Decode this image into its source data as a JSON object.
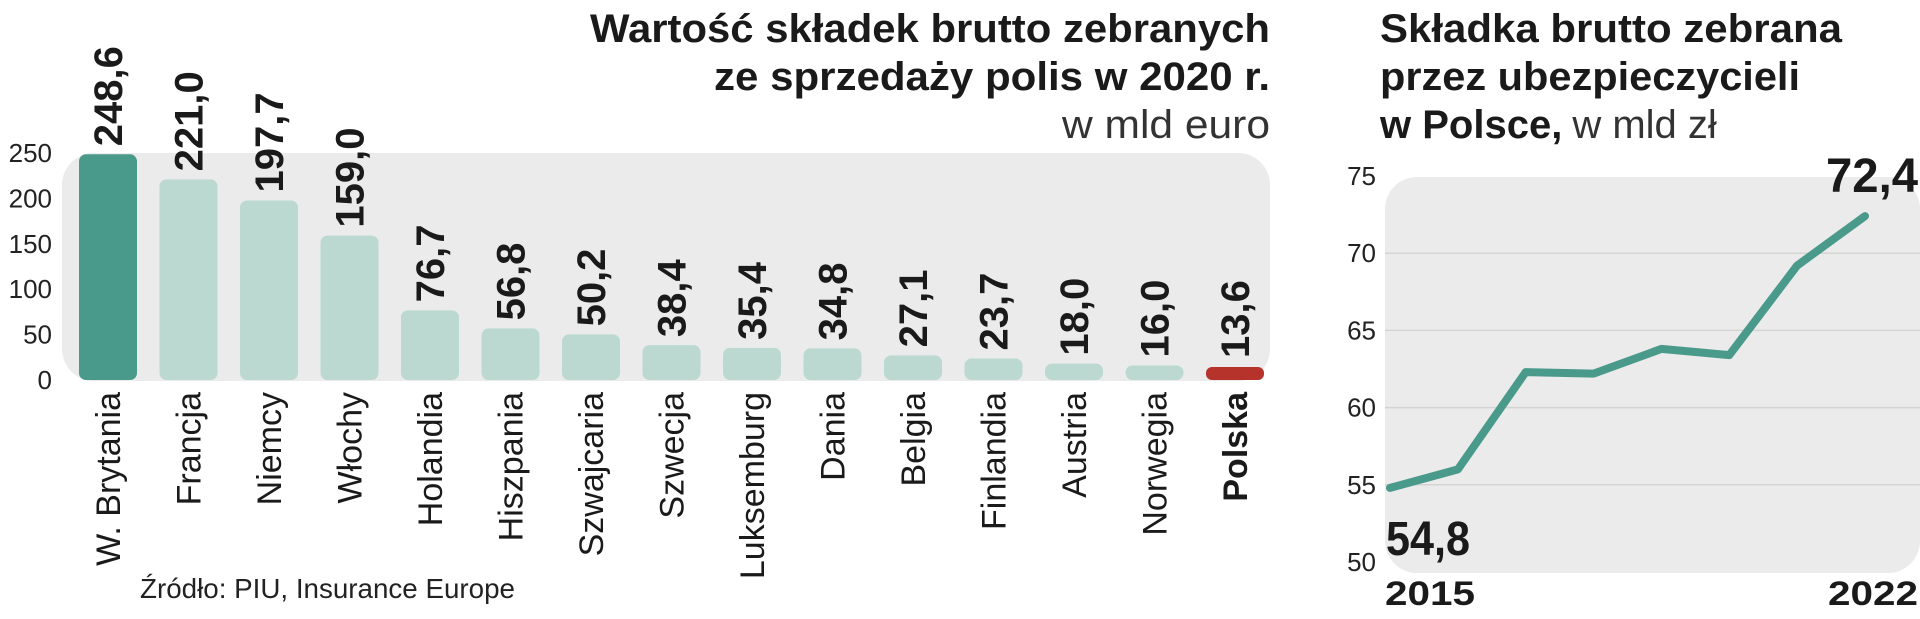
{
  "source": "Źródło: PIU, Insurance Europe",
  "colors": {
    "panel_bg": "#ebebeb",
    "bar_light": "#bcd9d1",
    "bar_dark": "#4a9a8c",
    "bar_highlight": "#b5332b",
    "line": "#4a9a8c",
    "grid": "#d4d4d4"
  },
  "chart_data": [
    {
      "type": "bar",
      "title_line1": "Wartość składek brutto zebranych",
      "title_line2": "ze sprzedaży polis w 2020 r.",
      "unit": "w mld euro",
      "categories": [
        "W. Brytania",
        "Francja",
        "Niemcy",
        "Włochy",
        "Holandia",
        "Hiszpania",
        "Szwajcaria",
        "Szwecja",
        "Luksemburg",
        "Dania",
        "Belgia",
        "Finlandia",
        "Austria",
        "Norwegia",
        "Polska"
      ],
      "values": [
        248.6,
        221.0,
        197.7,
        159.0,
        76.7,
        56.8,
        50.2,
        38.4,
        35.4,
        34.8,
        27.1,
        23.7,
        18.0,
        16.0,
        13.6
      ],
      "value_labels": [
        "248,6",
        "221,0",
        "197,7",
        "159,0",
        "76,7",
        "56,8",
        "50,2",
        "38,4",
        "35,4",
        "34,8",
        "27,1",
        "23,7",
        "18,0",
        "16,0",
        "13,6"
      ],
      "highlight_dark": "W. Brytania",
      "highlight_red": "Polska",
      "yticks": [
        0,
        50,
        100,
        150,
        200,
        250
      ],
      "ylim": [
        0,
        250
      ],
      "grid": false
    },
    {
      "type": "line",
      "title_line1": "Składka brutto zebrana",
      "title_line2": "przez ubezpieczycieli",
      "title_line3_bold": "w Polsce,",
      "unit": "w mld zł",
      "x": [
        2015,
        2016,
        2017,
        2018,
        2019,
        2020,
        2021,
        2022
      ],
      "x_labels": [
        "2015",
        "2022"
      ],
      "values": [
        54.8,
        56.0,
        62.3,
        62.2,
        63.8,
        63.4,
        69.2,
        72.4
      ],
      "start_label": "54,8",
      "end_label": "72,4",
      "yticks": [
        50,
        55,
        60,
        65,
        70,
        75
      ],
      "ylim": [
        50,
        75
      ],
      "grid": true
    }
  ]
}
